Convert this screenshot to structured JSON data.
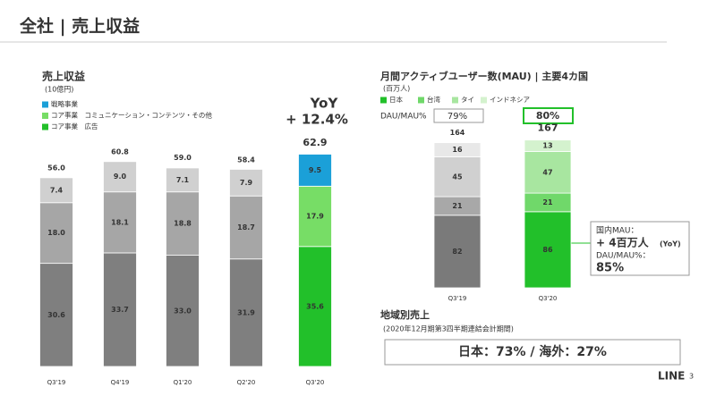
{
  "page_title": "全社 | 売上収益",
  "chart_data": [
    {
      "type": "stacked_bar",
      "title": "売上収益",
      "subtitle": "(10億円)",
      "categories": [
        "Q3'19",
        "Q4'19",
        "Q1'20",
        "Q2'20",
        "Q3'20"
      ],
      "series": [
        {
          "name": "コア事業　広告",
          "color": "#22c02a",
          "values": [
            30.6,
            33.7,
            33.0,
            31.9,
            35.6
          ],
          "value_labels": [
            "30.6",
            "33.7",
            "33.0",
            "31.9",
            "35.6"
          ],
          "bar_colors": [
            "#7f7f7f",
            "#7f7f7f",
            "#7f7f7f",
            "#7f7f7f",
            "#22c02a"
          ]
        },
        {
          "name": "コア事業　コミュニケーション・コンテンツ・その他",
          "color": "#77dd66",
          "values": [
            18.0,
            18.1,
            18.8,
            18.7,
            17.9
          ],
          "value_labels": [
            "18.0",
            "18.1",
            "18.8",
            "18.7",
            "17.9"
          ],
          "bar_colors": [
            "#a6a6a6",
            "#a6a6a6",
            "#a6a6a6",
            "#a6a6a6",
            "#77dd66"
          ]
        },
        {
          "name": "戦略事業",
          "color": "#1ba0d8",
          "values": [
            7.4,
            9.0,
            7.1,
            7.9,
            9.5
          ],
          "value_labels": [
            "7.4",
            "9.0",
            "7.1",
            "7.9",
            "9.5"
          ],
          "bar_colors": [
            "#d0d0d0",
            "#d0d0d0",
            "#d0d0d0",
            "#d0d0d0",
            "#1ba0d8"
          ]
        }
      ],
      "totals": [
        56.0,
        60.8,
        59.0,
        58.4,
        62.9
      ],
      "total_labels": [
        "56.0",
        "60.8",
        "59.0",
        "58.4",
        "62.9"
      ],
      "annotation": {
        "label": "YoY",
        "value": "+ 12.4%"
      }
    },
    {
      "type": "stacked_bar",
      "title": "月間アクティブユーザー数(MAU) | 主要4カ国",
      "subtitle": "(百万人)",
      "categories": [
        "Q3'19",
        "Q3'20"
      ],
      "series": [
        {
          "name": "日本",
          "color": "#22c02a",
          "values": [
            82,
            86
          ],
          "bar_colors": [
            "#7a7a7a",
            "#22c02a"
          ]
        },
        {
          "name": "台湾",
          "color": "#70d86a",
          "values": [
            21,
            21
          ],
          "bar_colors": [
            "#a8a8a8",
            "#70d86a"
          ]
        },
        {
          "name": "タイ",
          "color": "#a8e6a0",
          "values": [
            45,
            47
          ],
          "bar_colors": [
            "#d0d0d0",
            "#a8e6a0"
          ]
        },
        {
          "name": "インドネシア",
          "color": "#d4f2ce",
          "values": [
            16,
            13
          ],
          "bar_colors": [
            "#e8e8e8",
            "#d4f2ce"
          ]
        }
      ],
      "totals": [
        164,
        167
      ],
      "dau_mau": {
        "label": "DAU/MAU%",
        "values": [
          79,
          80
        ],
        "value_labels": [
          "79%",
          "80%"
        ]
      },
      "annotation": {
        "label": "国内MAU：",
        "value": "+ 4百万人",
        "note": "(YoY)",
        "ratio_label": "DAU/MAU%：",
        "ratio": "85%"
      }
    }
  ],
  "region": {
    "title": "地域別売上",
    "subtitle": "(2020年12月期第3四半期連結会計期間)",
    "text": "日本：73% / 海外：27%"
  },
  "footer": {
    "logo": "LINE",
    "page": "3"
  }
}
